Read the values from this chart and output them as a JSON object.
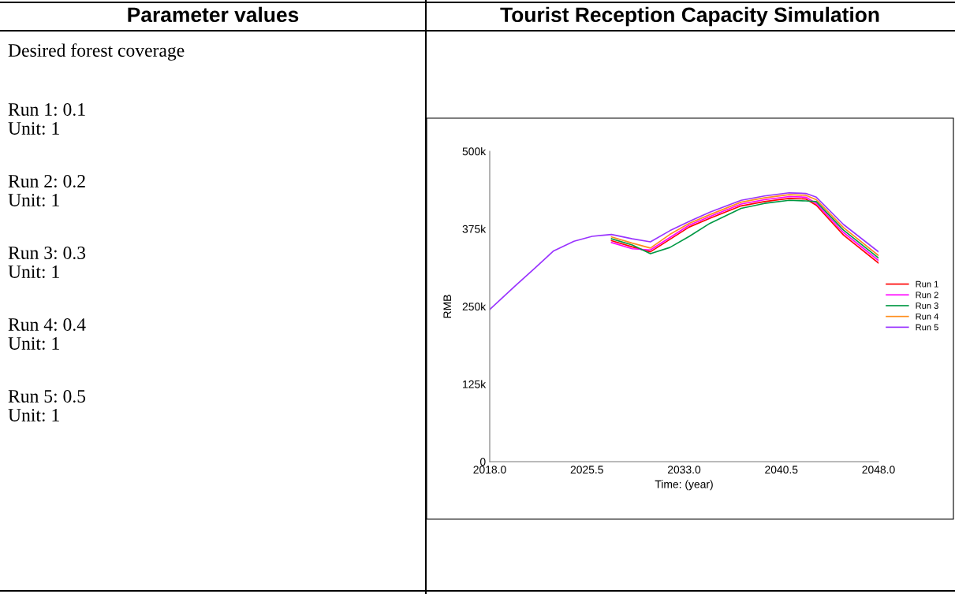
{
  "chart_data": {
    "type": "line",
    "title": "Tourist Reception Capacity Simulation",
    "subtitle": "Parameter values",
    "xlabel": "Time: (year)",
    "ylabel": "RMB",
    "annotations": [
      "Desired forest coverage",
      "Run 1: 0.1",
      "Unit: 1",
      "Run 2: 0.2",
      "Unit: 1",
      "Run 3: 0.3",
      "Unit: 1",
      "Run 4: 0.4",
      "Unit: 1",
      "Run 5: 0.5",
      "Unit: 1"
    ],
    "x": [
      2018,
      2019.9,
      2021.5,
      2022.9,
      2024.5,
      2025.9,
      2027.4,
      2029,
      2030.4,
      2031.9,
      2033.4,
      2035,
      2037.4,
      2039.2,
      2041.1,
      2042.4,
      2043.2,
      2045.3,
      2048
    ],
    "series": [
      {
        "name": "Run 1",
        "color": "#ff0000",
        "values": [
          null,
          null,
          null,
          null,
          null,
          null,
          356000,
          346000,
          338000,
          358000,
          378000,
          392000,
          412000,
          419000,
          424000,
          423000,
          413000,
          365000,
          320000
        ]
      },
      {
        "name": "Run 2",
        "color": "#ff00ff",
        "values": [
          null,
          null,
          null,
          null,
          null,
          null,
          353000,
          343000,
          341000,
          361000,
          381000,
          395000,
          415000,
          422000,
          427000,
          426000,
          416000,
          369000,
          324000
        ]
      },
      {
        "name": "Run 3",
        "color": "#009944",
        "values": [
          null,
          null,
          null,
          null,
          null,
          null,
          359000,
          349000,
          335000,
          345000,
          363000,
          384000,
          408000,
          416000,
          421000,
          420000,
          419000,
          373000,
          328000
        ]
      },
      {
        "name": "Run 4",
        "color": "#ff8c1a",
        "values": [
          null,
          null,
          null,
          null,
          null,
          null,
          362000,
          352000,
          344000,
          366000,
          384000,
          398000,
          418000,
          425000,
          430000,
          429000,
          422000,
          377000,
          332000
        ]
      },
      {
        "name": "Run 5",
        "color": "#9933ff",
        "values": [
          245000,
          282000,
          312000,
          339000,
          355000,
          363000,
          366000,
          359000,
          354000,
          372000,
          387000,
          402000,
          421000,
          428000,
          433000,
          432000,
          426000,
          382000,
          338000
        ]
      }
    ],
    "xlim": [
      2018,
      2048
    ],
    "xticks": [
      {
        "value": 2018,
        "label": "2018.0"
      },
      {
        "value": 2025.5,
        "label": "2025.5"
      },
      {
        "value": 2033,
        "label": "2033.0"
      },
      {
        "value": 2040.5,
        "label": "2040.5"
      },
      {
        "value": 2048,
        "label": "2048.0"
      }
    ],
    "ylim": [
      0,
      500000
    ],
    "yticks": [
      0,
      {
        "value": 125000,
        "label": "125k"
      },
      {
        "value": 250000,
        "label": "250k"
      },
      {
        "value": 375000,
        "label": "375k"
      },
      {
        "value": 500000,
        "label": "500k"
      }
    ],
    "grid": false,
    "legend": "right",
    "marker": "none",
    "line_style": "solid"
  }
}
